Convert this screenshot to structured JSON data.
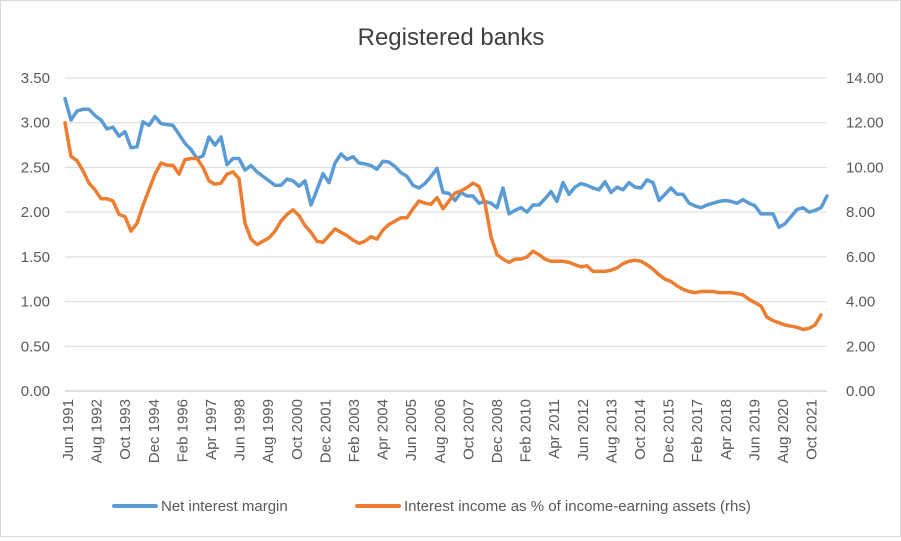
{
  "chart_data": {
    "type": "line",
    "title": "Registered banks",
    "xlabel": "",
    "ylabel": "",
    "ylim": [
      0,
      3.5
    ],
    "y2lim": [
      0,
      14
    ],
    "y_ticks": [
      "0.00",
      "0.50",
      "1.00",
      "1.50",
      "2.00",
      "2.50",
      "3.00",
      "3.50"
    ],
    "y2_ticks": [
      "0.00",
      "2.00",
      "4.00",
      "6.00",
      "8.00",
      "10.00",
      "12.00",
      "14.00"
    ],
    "x_tick_labels": [
      "Jun 1991",
      "Aug 1992",
      "Oct 1993",
      "Dec 1994",
      "Feb 1996",
      "Apr 1997",
      "Jun 1998",
      "Aug 1999",
      "Oct 2000",
      "Dec 2001",
      "Feb 2003",
      "Apr 2004",
      "Jun 2005",
      "Aug 2006",
      "Oct 2007",
      "Dec 2008",
      "Feb 2010",
      "Apr 2011",
      "Jun 2012",
      "Aug 2013",
      "Oct 2014",
      "Dec 2015",
      "Feb 2017",
      "Apr 2018",
      "Jun 2019",
      "Aug 2020",
      "Oct 2021"
    ],
    "grid": true,
    "legend_position": "bottom",
    "series": [
      {
        "name": "Net interest margin",
        "axis": "left",
        "color": "#5b9bd5",
        "values": [
          3.27,
          3.03,
          3.13,
          3.15,
          3.15,
          3.08,
          3.03,
          2.93,
          2.95,
          2.85,
          2.9,
          2.72,
          2.73,
          3.01,
          2.97,
          3.07,
          2.99,
          2.98,
          2.97,
          2.87,
          2.77,
          2.7,
          2.6,
          2.63,
          2.84,
          2.75,
          2.84,
          2.53,
          2.6,
          2.6,
          2.47,
          2.52,
          2.45,
          2.4,
          2.35,
          2.3,
          2.3,
          2.37,
          2.35,
          2.29,
          2.35,
          2.08,
          2.25,
          2.43,
          2.33,
          2.55,
          2.65,
          2.59,
          2.62,
          2.55,
          2.54,
          2.52,
          2.48,
          2.57,
          2.56,
          2.51,
          2.44,
          2.4,
          2.3,
          2.27,
          2.32,
          2.4,
          2.49,
          2.22,
          2.21,
          2.13,
          2.22,
          2.18,
          2.18,
          2.1,
          2.12,
          2.1,
          2.05,
          2.27,
          1.98,
          2.02,
          2.05,
          2.0,
          2.08,
          2.08,
          2.15,
          2.23,
          2.12,
          2.33,
          2.2,
          2.28,
          2.32,
          2.3,
          2.27,
          2.25,
          2.34,
          2.22,
          2.28,
          2.25,
          2.33,
          2.28,
          2.27,
          2.36,
          2.33,
          2.13,
          2.2,
          2.27,
          2.2,
          2.2,
          2.1,
          2.07,
          2.05,
          2.08,
          2.1,
          2.12,
          2.13,
          2.12,
          2.1,
          2.14,
          2.1,
          2.07,
          1.98,
          1.98,
          1.98,
          1.83,
          1.87,
          1.95,
          2.03,
          2.05,
          2.0,
          2.02,
          2.05,
          2.18
        ]
      },
      {
        "name": "Interest income as % of income-earning assets (rhs)",
        "axis": "right",
        "color": "#ed7d31",
        "values": [
          12.0,
          10.5,
          10.3,
          9.85,
          9.3,
          9.0,
          8.6,
          8.6,
          8.5,
          7.9,
          7.8,
          7.15,
          7.5,
          8.3,
          9.0,
          9.7,
          10.2,
          10.1,
          10.1,
          9.7,
          10.35,
          10.4,
          10.4,
          10.0,
          9.4,
          9.25,
          9.3,
          9.7,
          9.8,
          9.5,
          7.5,
          6.8,
          6.55,
          6.7,
          6.85,
          7.15,
          7.6,
          7.9,
          8.1,
          7.85,
          7.4,
          7.1,
          6.7,
          6.65,
          6.95,
          7.25,
          7.1,
          6.95,
          6.75,
          6.6,
          6.7,
          6.9,
          6.8,
          7.2,
          7.45,
          7.6,
          7.75,
          7.75,
          8.15,
          8.5,
          8.4,
          8.35,
          8.65,
          8.15,
          8.5,
          8.85,
          8.95,
          9.1,
          9.3,
          9.15,
          8.4,
          6.9,
          6.1,
          5.9,
          5.75,
          5.9,
          5.9,
          6.0,
          6.25,
          6.1,
          5.9,
          5.8,
          5.8,
          5.8,
          5.75,
          5.65,
          5.55,
          5.6,
          5.35,
          5.35,
          5.35,
          5.4,
          5.5,
          5.7,
          5.8,
          5.85,
          5.8,
          5.65,
          5.45,
          5.2,
          5.0,
          4.9,
          4.7,
          4.55,
          4.45,
          4.4,
          4.45,
          4.45,
          4.45,
          4.4,
          4.4,
          4.4,
          4.35,
          4.3,
          4.1,
          3.95,
          3.8,
          3.3,
          3.15,
          3.05,
          2.95,
          2.9,
          2.85,
          2.75,
          2.8,
          2.95,
          3.4
        ]
      }
    ]
  }
}
